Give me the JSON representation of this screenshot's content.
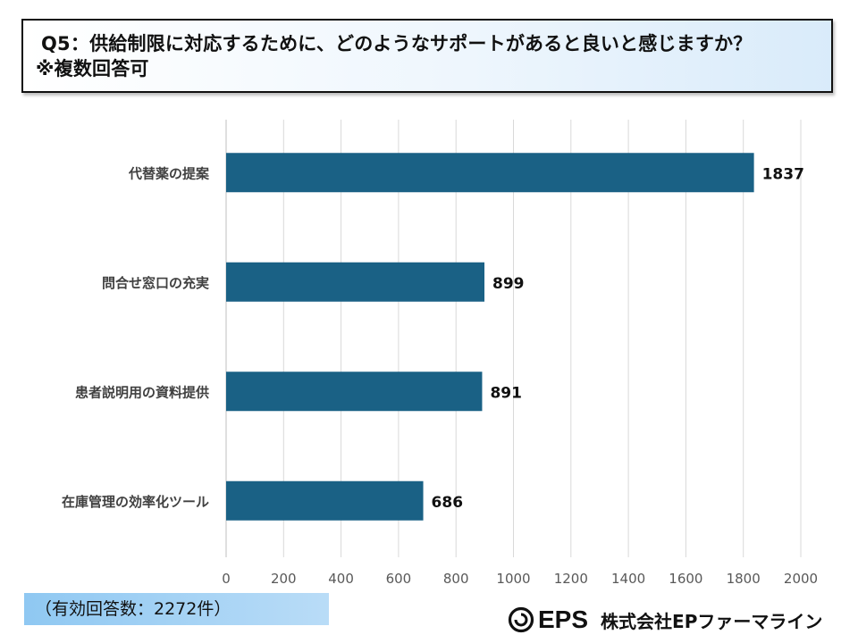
{
  "title": {
    "line1": "Q5：供給制限に対応するために、どのようなサポートがあると良いと感じますか？",
    "line2": "※複数回答可"
  },
  "chart_data": {
    "type": "bar",
    "orientation": "horizontal",
    "categories": [
      "代替薬の提案",
      "問合せ窓口の充実",
      "患者説明用の資料提供",
      "在庫管理の効率化ツール"
    ],
    "values": [
      1837,
      899,
      891,
      686
    ],
    "xlim": [
      0,
      2000
    ],
    "xticks": [
      0,
      200,
      400,
      600,
      800,
      1000,
      1200,
      1400,
      1600,
      1800,
      2000
    ],
    "grid": true,
    "bar_color": "#1a6185",
    "data_labels": true
  },
  "footer": {
    "respondents": "（有効回答数：2272件）"
  },
  "logo": {
    "brand": "EPS",
    "company": "株式会社EPファーマライン"
  }
}
